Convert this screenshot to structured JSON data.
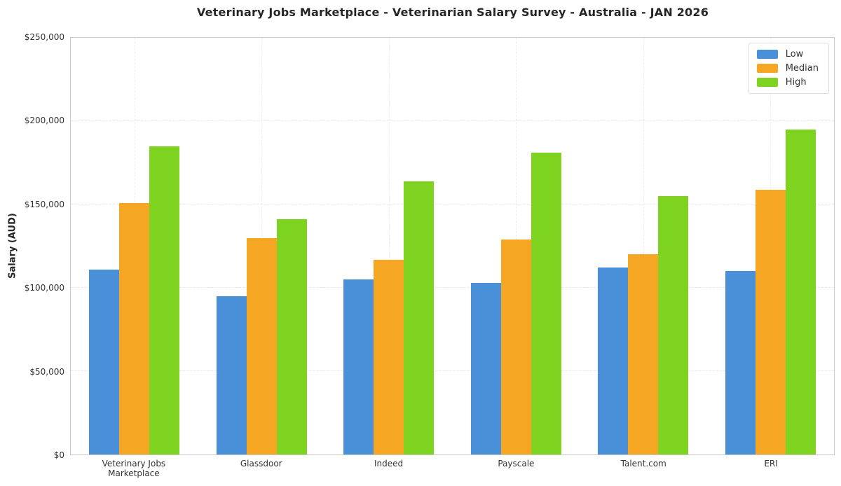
{
  "chart_data": {
    "type": "bar",
    "title": "Veterinary Jobs Marketplace - Veterinarian Salary Survey - Australia - JAN 2026",
    "xlabel": "",
    "ylabel": "Salary (AUD)",
    "ylim": [
      0,
      250000
    ],
    "grid": true,
    "legend_position": "top-right",
    "yticks": [
      {
        "value": 0,
        "label": "$0"
      },
      {
        "value": 50000,
        "label": "$50,000"
      },
      {
        "value": 100000,
        "label": "$100,000"
      },
      {
        "value": 150000,
        "label": "$150,000"
      },
      {
        "value": 200000,
        "label": "$200,000"
      },
      {
        "value": 250000,
        "label": "$250,000"
      }
    ],
    "categories": [
      "Veterinary Jobs Marketplace",
      "Glassdoor",
      "Indeed",
      "Payscale",
      "Talent.com",
      "ERI"
    ],
    "series": [
      {
        "name": "Low",
        "color": "#4A90D9",
        "values": [
          111000,
          95000,
          105000,
          103000,
          112000,
          110000
        ]
      },
      {
        "name": "Median",
        "color": "#F5A623",
        "values": [
          151000,
          130000,
          117000,
          129000,
          120000,
          159000
        ]
      },
      {
        "name": "High",
        "color": "#7ED321",
        "values": [
          185000,
          141000,
          164000,
          181000,
          155000,
          195000
        ]
      }
    ]
  }
}
